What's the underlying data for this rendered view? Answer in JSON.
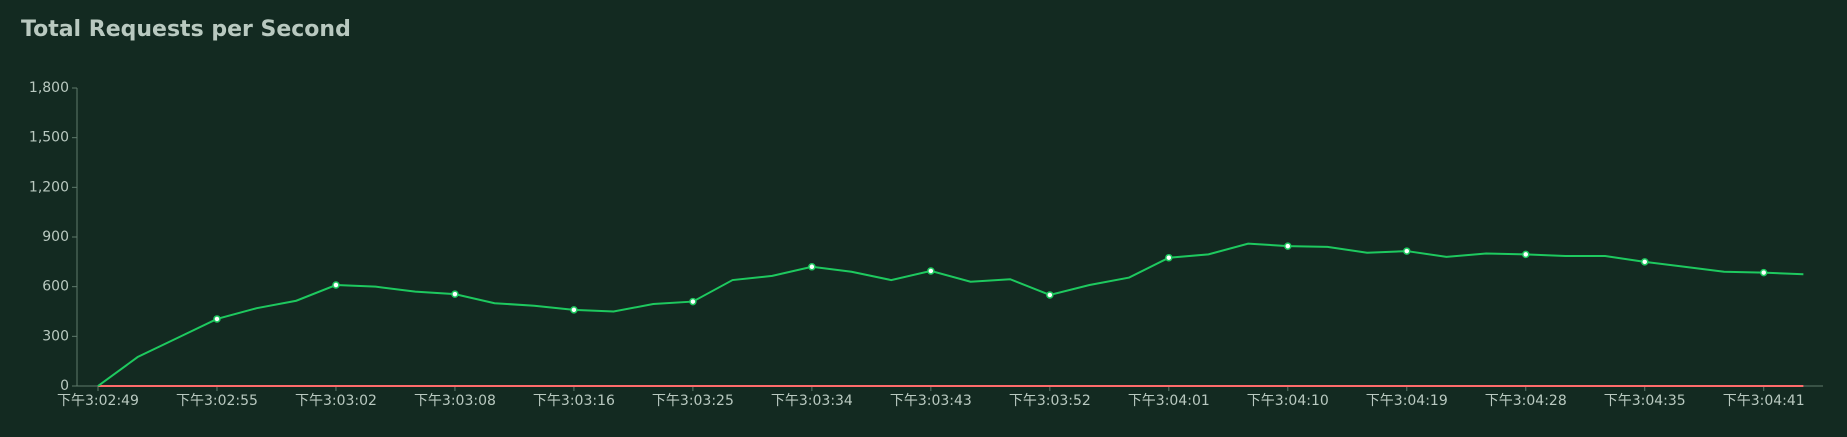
{
  "chart_data": {
    "type": "line",
    "title": "Total Requests per Second",
    "categories": [
      "下午3:02:49",
      null,
      null,
      "下午3:02:55",
      null,
      null,
      "下午3:03:02",
      null,
      null,
      "下午3:03:08",
      null,
      null,
      "下午3:03:16",
      null,
      null,
      "下午3:03:25",
      null,
      null,
      "下午3:03:34",
      null,
      null,
      "下午3:03:43",
      null,
      null,
      "下午3:03:52",
      null,
      null,
      "下午3:04:01",
      null,
      null,
      "下午3:04:10",
      null,
      null,
      "下午3:04:19",
      null,
      null,
      "下午3:04:28",
      null,
      null,
      "下午3:04:35",
      null,
      null,
      "下午3:04:41",
      null
    ],
    "series": [
      {
        "color": "#1ec95f",
        "values": [
          0,
          175,
          290,
          405,
          470,
          515,
          610,
          600,
          570,
          555,
          500,
          485,
          460,
          450,
          495,
          510,
          640,
          665,
          720,
          690,
          640,
          695,
          630,
          645,
          550,
          610,
          655,
          775,
          795,
          860,
          845,
          840,
          805,
          815,
          780,
          800,
          795,
          785,
          785,
          750,
          720,
          690,
          685,
          675
        ]
      },
      {
        "color": "#ff6b6b",
        "values": [
          0,
          0,
          0,
          0,
          0,
          0,
          0,
          0,
          0,
          0,
          0,
          0,
          0,
          0,
          0,
          0,
          0,
          0,
          0,
          0,
          0,
          0,
          0,
          0,
          0,
          0,
          0,
          0,
          0,
          0,
          0,
          0,
          0,
          0,
          0,
          0,
          0,
          0,
          0,
          0,
          0,
          0,
          0,
          0
        ]
      }
    ],
    "ylim": [
      0,
      1800
    ],
    "yticks": [
      0,
      300,
      600,
      900,
      {
        "value": 1200,
        "label": "1,200"
      },
      {
        "value": 1500,
        "label": "1,500"
      },
      {
        "value": 1800,
        "label": "1,800"
      }
    ]
  }
}
